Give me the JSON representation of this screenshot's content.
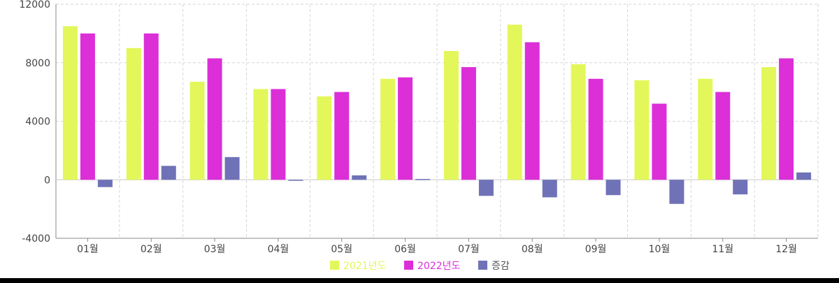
{
  "chart_data": {
    "type": "bar",
    "categories": [
      "01월",
      "02월",
      "03월",
      "04월",
      "05월",
      "06월",
      "07월",
      "08월",
      "09월",
      "10월",
      "11월",
      "12월"
    ],
    "series": [
      {
        "name": "2021년도",
        "color": "#e3f75a",
        "values": [
          10500,
          9000,
          6700,
          6200,
          5700,
          6900,
          8800,
          10600,
          7900,
          6800,
          6900,
          7700
        ]
      },
      {
        "name": "2022년도",
        "color": "#dc2fd8",
        "values": [
          10000,
          10000,
          8300,
          6200,
          6000,
          7000,
          7700,
          9400,
          6900,
          5200,
          6000,
          8300
        ]
      },
      {
        "name": "증감",
        "color": "#6f72b6",
        "values": [
          -500,
          950,
          1550,
          -50,
          300,
          50,
          -1100,
          -1200,
          -1050,
          -1650,
          -1000,
          500
        ]
      }
    ],
    "y_ticks": [
      "12000",
      "8000",
      "4000",
      "0",
      "-4000"
    ],
    "ylim": [
      -4000,
      12000
    ],
    "grid": true,
    "legend_position": "bottom-center"
  }
}
